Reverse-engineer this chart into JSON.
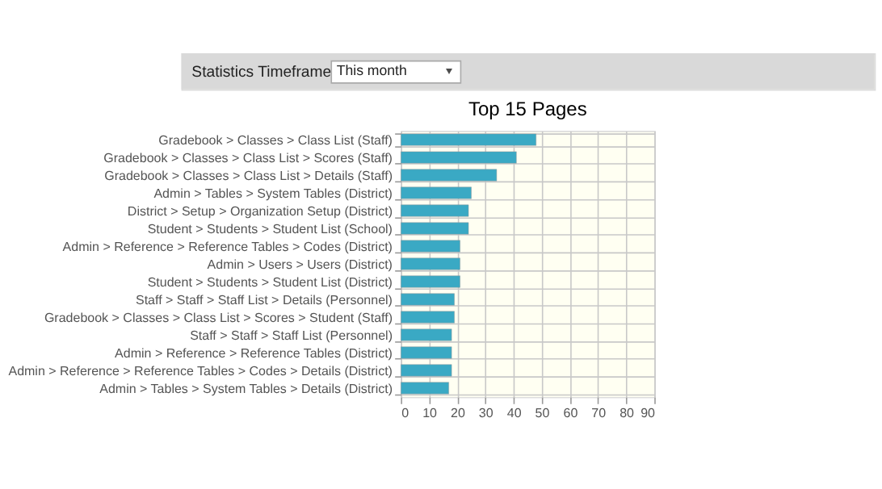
{
  "chart_data": {
    "type": "bar",
    "orientation": "horizontal",
    "title": "Top 15 Pages",
    "annotations": [
      "Statistics Timeframe",
      "This month"
    ],
    "categories": [
      "Gradebook > Classes > Class List (Staff)",
      "Gradebook > Classes > Class List > Scores (Staff)",
      "Gradebook > Classes > Class List > Details (Staff)",
      "Admin > Tables > System Tables (District)",
      "District > Setup > Organization Setup (District)",
      "Student > Students > Student List (School)",
      "Admin > Reference > Reference Tables > Codes (District)",
      "Admin > Users > Users (District)",
      "Student > Students > Student List (District)",
      "Staff > Staff > Staff List > Details (Personnel)",
      "Gradebook > Classes > Class List > Scores > Student (Staff)",
      "Staff > Staff > Staff List (Personnel)",
      "Admin > Reference > Reference Tables (District)",
      "Admin > Reference > Reference Tables > Codes > Details (District)",
      "Admin > Tables > System Tables > Details (District)"
    ],
    "values": [
      48,
      41,
      34,
      25,
      24,
      24,
      21,
      21,
      21,
      19,
      19,
      18,
      18,
      18,
      17
    ],
    "color": "#3aa9c4",
    "xlim": [
      0,
      90
    ],
    "xticks": [
      0,
      10,
      20,
      30,
      40,
      50,
      60,
      70,
      80,
      90
    ],
    "grid": true
  }
}
